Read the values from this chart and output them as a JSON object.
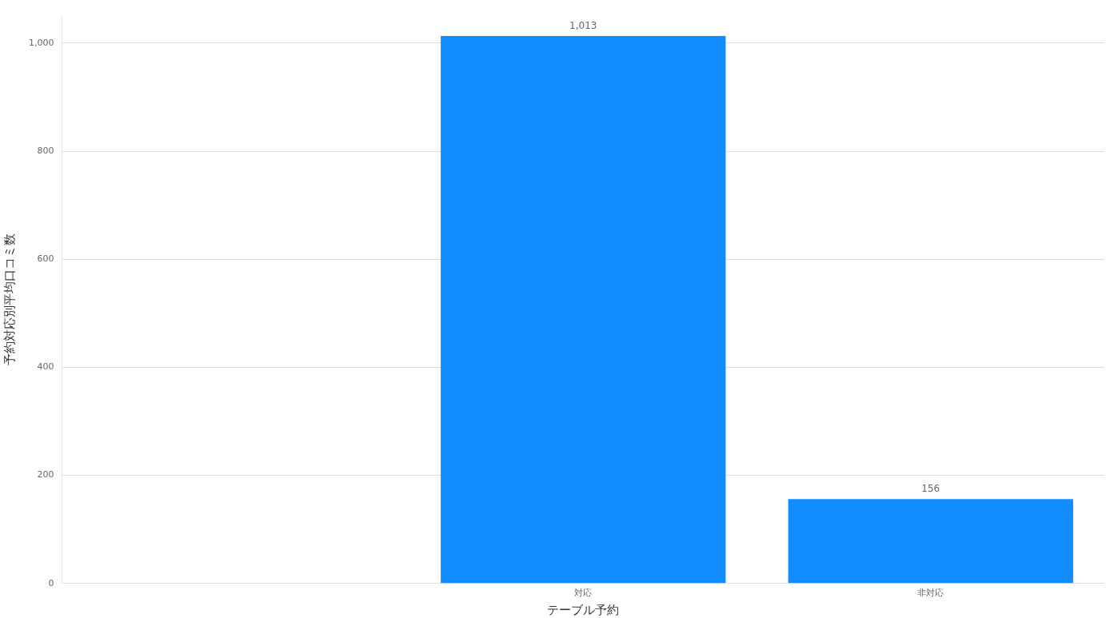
{
  "chart_data": {
    "type": "bar",
    "xlabel": "テーブル予約",
    "ylabel": "予約対応別平均口コミ数",
    "categories": [
      null,
      "対応",
      "非対応"
    ],
    "values": [
      null,
      1013,
      156
    ],
    "value_labels": [
      null,
      "1,013",
      "156"
    ],
    "color": "#118dff",
    "ylim": [
      0,
      1050
    ],
    "yticks": [
      0,
      200,
      400,
      600,
      800,
      {
        "value": 1000,
        "label": "1,000"
      }
    ],
    "grid": "y",
    "legend": false
  }
}
